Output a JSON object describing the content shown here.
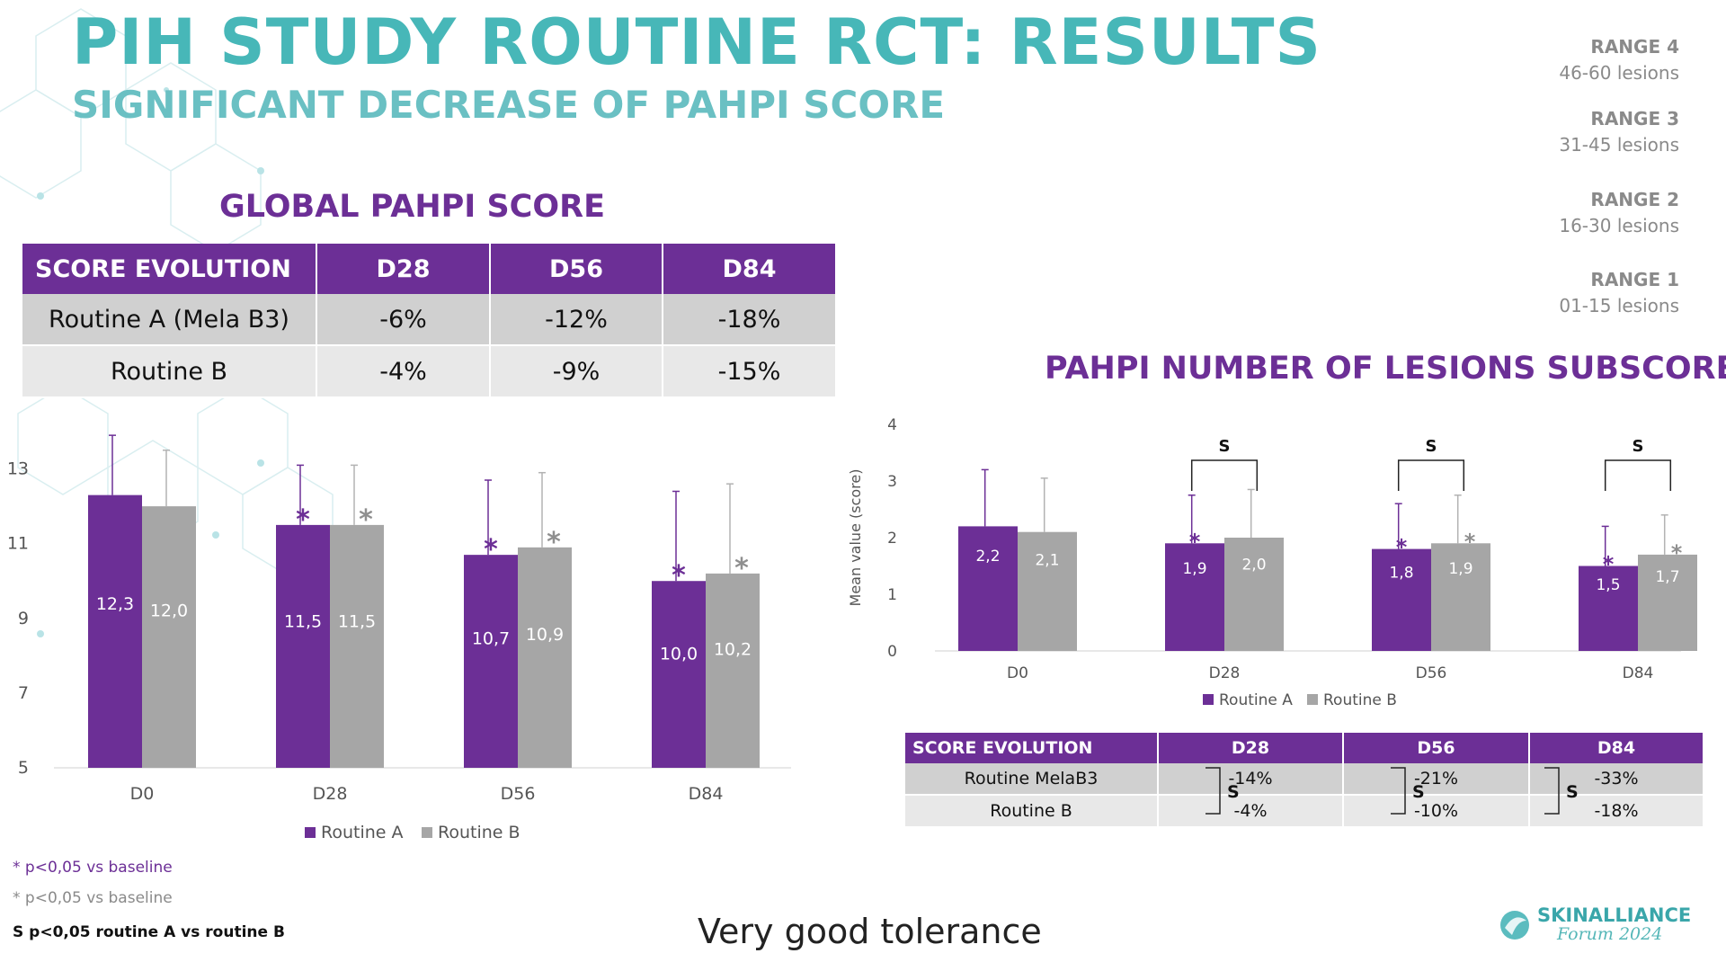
{
  "slide": {
    "title": "PIH STUDY ROUTINE RCT: RESULTS",
    "subtitle": "SIGNIFICANT DECREASE OF PAHPI SCORE"
  },
  "ranges": [
    {
      "label": "RANGE 4",
      "value": "46-60 lesions"
    },
    {
      "label": "RANGE 3",
      "value": "31-45 lesions"
    },
    {
      "label": "RANGE 2",
      "value": "16-30 lesions"
    },
    {
      "label": "RANGE 1",
      "value": "01-15 lesions"
    }
  ],
  "global_section": {
    "title": "GLOBAL PAHPI SCORE",
    "table": {
      "headers": [
        "SCORE EVOLUTION",
        "D28",
        "D56",
        "D84"
      ],
      "rows": [
        [
          "Routine A (Mela B3)",
          "-6%",
          "-12%",
          "-18%"
        ],
        [
          "Routine B",
          "-4%",
          "-9%",
          "-15%"
        ]
      ]
    }
  },
  "lesions_section": {
    "title": "PAHPI NUMBER OF LESIONS SUBSCORE",
    "table": {
      "headers": [
        "SCORE EVOLUTION",
        "D28",
        "D56",
        "D84"
      ],
      "rows": [
        [
          "Routine MelaB3",
          "-14%",
          "-21%",
          "-33%"
        ],
        [
          "Routine B",
          "-4%",
          "-10%",
          "-18%"
        ]
      ],
      "sig_marker": "S"
    }
  },
  "chart_data": [
    {
      "type": "bar",
      "categories": [
        "D0",
        "D28",
        "D56",
        "D84"
      ],
      "series": [
        {
          "name": "Routine A",
          "color": "#6c2f96",
          "values": [
            12.3,
            11.5,
            10.7,
            10.0
          ],
          "labels": [
            "12,3",
            "11,5",
            "10,7",
            "10,0"
          ],
          "error_upper": [
            1.6,
            1.6,
            2.0,
            2.4
          ],
          "significance": [
            false,
            true,
            true,
            true
          ]
        },
        {
          "name": "Routine B",
          "color": "#a6a6a6",
          "values": [
            12.0,
            11.5,
            10.9,
            10.2
          ],
          "labels": [
            "12,0",
            "11,5",
            "10,9",
            "10,2"
          ],
          "error_upper": [
            1.5,
            1.6,
            2.0,
            2.4
          ],
          "significance": [
            false,
            true,
            true,
            true
          ]
        }
      ],
      "ylim": [
        5,
        14
      ],
      "yticks": [
        5,
        7,
        9,
        11,
        13
      ],
      "ylabel": "",
      "legend": "bottom",
      "grid": false
    },
    {
      "type": "bar",
      "categories": [
        "D0",
        "D28",
        "D56",
        "D84"
      ],
      "series": [
        {
          "name": "Routine A",
          "color": "#6c2f96",
          "values": [
            2.2,
            1.9,
            1.8,
            1.5
          ],
          "labels": [
            "2,2",
            "1,9",
            "1,8",
            "1,5"
          ],
          "error_upper": [
            1.0,
            0.85,
            0.8,
            0.7
          ],
          "significance": [
            false,
            true,
            true,
            true
          ]
        },
        {
          "name": "Routine B",
          "color": "#a6a6a6",
          "values": [
            2.1,
            2.0,
            1.9,
            1.7
          ],
          "labels": [
            "2,1",
            "2,0",
            "1,9",
            "1,7"
          ],
          "error_upper": [
            0.95,
            0.85,
            0.85,
            0.7
          ],
          "significance": [
            false,
            false,
            true,
            true
          ]
        }
      ],
      "ab_significant": [
        false,
        true,
        true,
        true
      ],
      "ab_marker": "S",
      "ylim": [
        0,
        4
      ],
      "yticks": [
        0,
        1,
        2,
        3,
        4
      ],
      "ylabel": "Mean value (score)",
      "legend": "bottom",
      "grid": false
    }
  ],
  "footnotes": [
    {
      "text": "* p<0,05 vs baseline",
      "color": "#6c2f96"
    },
    {
      "text": "* p<0,05 vs baseline",
      "color": "#8a8a8a"
    },
    {
      "text": "S p<0,05 routine A vs routine B",
      "color": "#111111"
    }
  ],
  "tolerance": "Very good tolerance",
  "logo": {
    "brand": "SKINALLIANCE",
    "sub": "Forum 2024"
  }
}
